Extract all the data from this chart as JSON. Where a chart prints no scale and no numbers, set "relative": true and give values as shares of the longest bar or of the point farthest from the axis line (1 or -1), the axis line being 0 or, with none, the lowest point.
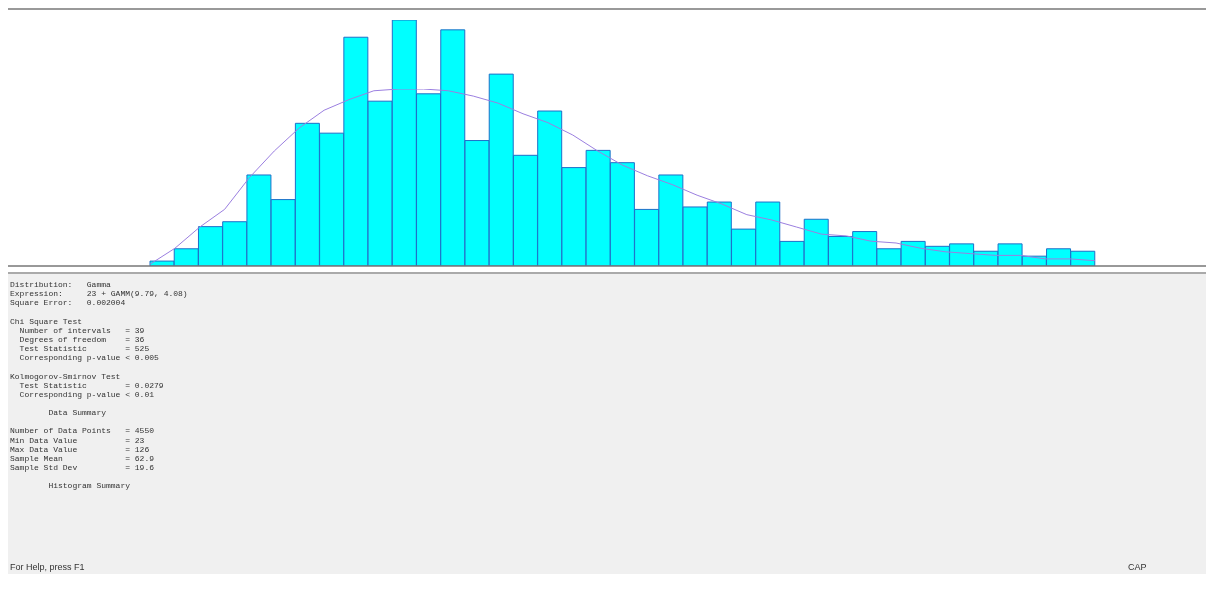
{
  "chart_data": [
    {
      "type": "bar",
      "relative": true,
      "categories": [
        null,
        null,
        null,
        null,
        null,
        null,
        null,
        null,
        null,
        null,
        null,
        null,
        null,
        null,
        null,
        null,
        null,
        null,
        null,
        null,
        null,
        null,
        null,
        null,
        null,
        null,
        null,
        null,
        null,
        null,
        null,
        null,
        null,
        null,
        null,
        null,
        null,
        null,
        null
      ],
      "series": [
        {
          "color": "#00ffff",
          "values": [
            0.02,
            0.07,
            0.16,
            0.18,
            0.37,
            0.27,
            0.58,
            0.54,
            0.93,
            0.67,
            1.0,
            0.7,
            0.96,
            0.51,
            0.78,
            0.45,
            0.63,
            0.4,
            0.47,
            0.42,
            0.23,
            0.37,
            0.24,
            0.26,
            0.15,
            0.26,
            0.1,
            0.19,
            0.12,
            0.14,
            0.07,
            0.1,
            0.08,
            0.09,
            0.06,
            0.09,
            0.04,
            0.07,
            0.06
          ]
        }
      ],
      "annotations": [
        "Distribution:   Gamma\nExpression:     23 + GAMM(9.79, 4.08)\nSquare Error:   0.002004",
        "Chi Square Test\n  Number of intervals   = 39\n  Degrees of freedom    = 36\n  Test Statistic        = 525\n  Corresponding p-value < 0.005",
        "Kolmogorov-Smirnov Test\n  Test Statistic        = 0.0279\n  Corresponding p-value < 0.01",
        "        Data Summary",
        "Number of Data Points   = 4550\nMin Data Value          = 23\nMax Data Value          = 126\nSample Mean             = 62.9\nSample Std Dev          = 19.6",
        "        Histogram Summary",
        "For Help, press F1",
        "CAP"
      ]
    },
    {
      "type": "line",
      "relative": true,
      "categories": [
        null,
        null,
        null,
        null,
        null,
        null,
        null,
        null,
        null,
        null,
        null,
        null,
        null,
        null,
        null,
        null,
        null,
        null,
        null,
        null,
        null,
        null,
        null,
        null,
        null,
        null,
        null,
        null,
        null,
        null,
        null,
        null,
        null,
        null,
        null,
        null,
        null,
        null,
        null
      ],
      "series": [
        {
          "color": "#9b7fe0",
          "values": [
            0.01,
            0.1,
            0.22,
            0.32,
            0.5,
            0.65,
            0.78,
            0.88,
            0.94,
            0.99,
            1.0,
            1.0,
            0.99,
            0.96,
            0.92,
            0.86,
            0.81,
            0.74,
            0.65,
            0.57,
            0.51,
            0.46,
            0.4,
            0.35,
            0.29,
            0.26,
            0.22,
            0.18,
            0.17,
            0.14,
            0.13,
            0.1,
            0.08,
            0.07,
            0.06,
            0.06,
            0.04,
            0.04,
            0.03
          ]
        }
      ]
    }
  ]
}
